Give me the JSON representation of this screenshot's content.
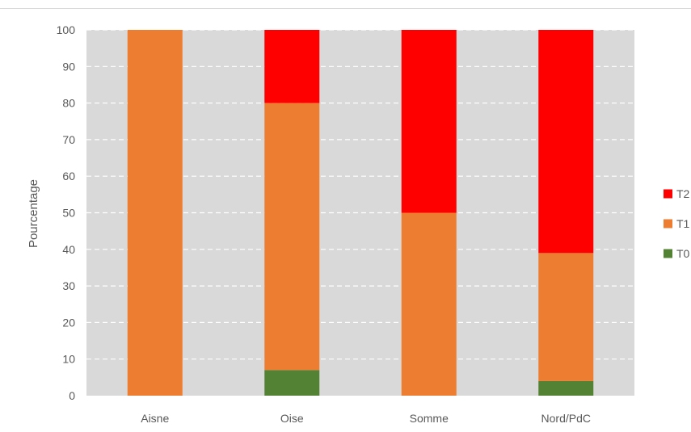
{
  "chart_data": {
    "type": "bar",
    "stacked": true,
    "title": "",
    "xlabel": "",
    "ylabel": "Pourcentage",
    "ylim": [
      0,
      100
    ],
    "yticks": [
      0,
      10,
      20,
      30,
      40,
      50,
      60,
      70,
      80,
      90,
      100
    ],
    "categories": [
      "Aisne",
      "Oise",
      "Somme",
      "Nord/PdC"
    ],
    "series": [
      {
        "name": "T0",
        "color": "#548235",
        "values": [
          0,
          7,
          0,
          4
        ]
      },
      {
        "name": "T1",
        "color": "#ed7d31",
        "values": [
          100,
          73,
          50,
          35
        ]
      },
      {
        "name": "T2",
        "color": "#ff0000",
        "values": [
          0,
          20,
          50,
          61
        ]
      }
    ],
    "legend_order": [
      "T2",
      "T1",
      "T0"
    ],
    "legend_position": "right",
    "grid": true,
    "plot_background": "#d9d9d9",
    "gridline_color": "#ffffff",
    "gridline_style": "dashed"
  }
}
